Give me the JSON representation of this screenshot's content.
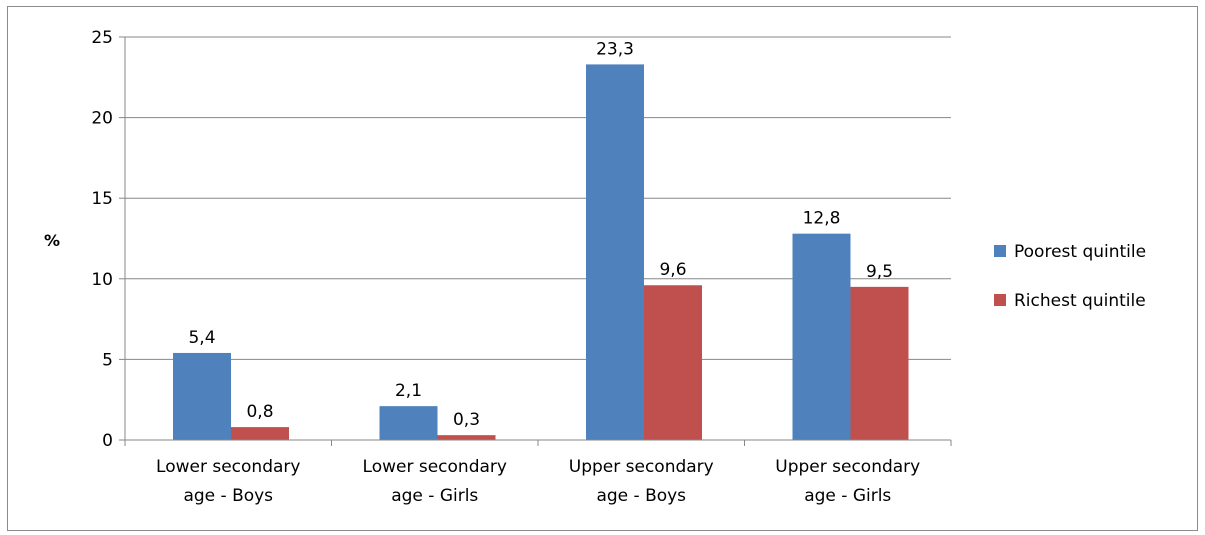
{
  "chart_data": {
    "type": "bar",
    "categories": [
      [
        "Lower secondary",
        "age - Boys"
      ],
      [
        "Lower secondary",
        "age - Girls"
      ],
      [
        "Upper secondary",
        "age - Boys"
      ],
      [
        "Upper secondary",
        "age - Girls"
      ]
    ],
    "series": [
      {
        "name": "Poorest quintile",
        "values": [
          5.4,
          2.1,
          23.3,
          12.8
        ],
        "labels": [
          "5,4",
          "2,1",
          "23,3",
          "12,8"
        ],
        "color": "#4f81bd"
      },
      {
        "name": "Richest quintile",
        "values": [
          0.8,
          0.3,
          9.6,
          9.5
        ],
        "labels": [
          "0,8",
          "0,3",
          "9,6",
          "9,5"
        ],
        "color": "#c0504d"
      }
    ],
    "ylabel": "%",
    "ylim": [
      0,
      25
    ],
    "yticks": [
      0,
      5,
      10,
      15,
      20,
      25
    ],
    "grid": true,
    "legend_position": "right",
    "gridline_color": "#878787"
  }
}
